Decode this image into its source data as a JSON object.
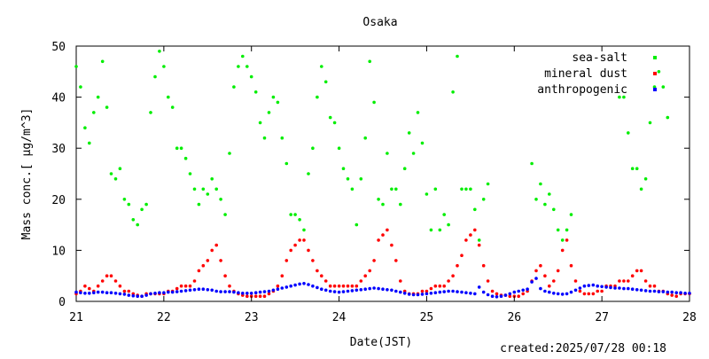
{
  "chart_data": {
    "type": "scatter",
    "title": "Osaka",
    "xlabel": "Date(JST)",
    "ylabel": "Mass conc.[ μg/m^3]",
    "xlim": [
      21,
      28
    ],
    "ylim": [
      0,
      50
    ],
    "x_ticks": [
      21,
      22,
      23,
      24,
      25,
      26,
      27,
      28
    ],
    "y_ticks": [
      0,
      10,
      20,
      30,
      40,
      50
    ],
    "x_tick_labels": [
      "21",
      "22",
      "23",
      "24",
      "25",
      "26",
      "27",
      "28"
    ],
    "y_tick_labels": [
      "0",
      "10",
      "20",
      "30",
      "40",
      "50"
    ],
    "grid": false,
    "legend_position": "top-right",
    "series": [
      {
        "name": "sea-salt",
        "color": "#00ee00",
        "x": [
          21.0,
          21.05,
          21.1,
          21.15,
          21.2,
          21.25,
          21.3,
          21.35,
          21.4,
          21.45,
          21.5,
          21.55,
          21.6,
          21.65,
          21.7,
          21.75,
          21.8,
          21.85,
          21.9,
          21.95,
          22.0,
          22.05,
          22.1,
          22.15,
          22.2,
          22.25,
          22.3,
          22.35,
          22.4,
          22.45,
          22.5,
          22.55,
          22.6,
          22.65,
          22.7,
          22.75,
          22.8,
          22.85,
          22.9,
          22.95,
          23.0,
          23.05,
          23.1,
          23.15,
          23.2,
          23.25,
          23.3,
          23.35,
          23.4,
          23.45,
          23.5,
          23.55,
          23.6,
          23.65,
          23.7,
          23.75,
          23.8,
          23.85,
          23.9,
          23.95,
          24.0,
          24.05,
          24.1,
          24.15,
          24.2,
          24.25,
          24.3,
          24.35,
          24.4,
          24.45,
          24.5,
          24.55,
          24.6,
          24.65,
          24.7,
          24.75,
          24.8,
          24.85,
          24.9,
          24.95,
          25.0,
          25.05,
          25.1,
          25.15,
          25.2,
          25.25,
          25.3,
          25.35,
          25.4,
          25.45,
          25.5,
          25.55,
          25.6,
          25.65,
          25.7,
          26.2,
          26.25,
          26.3,
          26.35,
          26.4,
          26.45,
          26.5,
          26.55,
          26.6,
          26.65,
          27.2,
          27.25,
          27.3,
          27.35,
          27.4,
          27.45,
          27.5,
          27.55,
          27.6,
          27.65,
          27.7,
          27.75
        ],
        "values": [
          46,
          42,
          34,
          31,
          37,
          40,
          47,
          38,
          25,
          24,
          26,
          20,
          19,
          16,
          15,
          18,
          19,
          37,
          44,
          49,
          46,
          40,
          38,
          30,
          30,
          28,
          25,
          22,
          19,
          22,
          21,
          24,
          22,
          20,
          17,
          29,
          42,
          46,
          48,
          46,
          44,
          41,
          35,
          32,
          37,
          40,
          39,
          32,
          27,
          17,
          17,
          16,
          14,
          25,
          30,
          40,
          46,
          43,
          36,
          35,
          30,
          26,
          24,
          22,
          15,
          24,
          32,
          47,
          39,
          20,
          19,
          29,
          22,
          22,
          19,
          26,
          33,
          29,
          37,
          31,
          21,
          14,
          22,
          14,
          17,
          15,
          41,
          48,
          22,
          22,
          22,
          18,
          12,
          20,
          23,
          27,
          20,
          23,
          19,
          21,
          18,
          14,
          12,
          14,
          17,
          40,
          40,
          33,
          26,
          26,
          22,
          24,
          35,
          42,
          45,
          42,
          36
        ]
      },
      {
        "name": "mineral dust",
        "color": "#ff0000",
        "x": [
          21.0,
          21.05,
          21.1,
          21.15,
          21.2,
          21.25,
          21.3,
          21.35,
          21.4,
          21.45,
          21.5,
          21.55,
          21.6,
          21.65,
          21.7,
          21.75,
          21.8,
          21.85,
          21.9,
          21.95,
          22.0,
          22.05,
          22.1,
          22.15,
          22.2,
          22.25,
          22.3,
          22.35,
          22.4,
          22.45,
          22.5,
          22.55,
          22.6,
          22.65,
          22.7,
          22.75,
          22.8,
          22.85,
          22.9,
          22.95,
          23.0,
          23.05,
          23.1,
          23.15,
          23.2,
          23.25,
          23.3,
          23.35,
          23.4,
          23.45,
          23.5,
          23.55,
          23.6,
          23.65,
          23.7,
          23.75,
          23.8,
          23.85,
          23.9,
          23.95,
          24.0,
          24.05,
          24.1,
          24.15,
          24.2,
          24.25,
          24.3,
          24.35,
          24.4,
          24.45,
          24.5,
          24.55,
          24.6,
          24.65,
          24.7,
          24.75,
          24.8,
          24.85,
          24.9,
          24.95,
          25.0,
          25.05,
          25.1,
          25.15,
          25.2,
          25.25,
          25.3,
          25.35,
          25.4,
          25.45,
          25.5,
          25.55,
          25.6,
          25.65,
          25.7,
          25.75,
          25.8,
          25.85,
          25.9,
          25.95,
          26.0,
          26.05,
          26.1,
          26.15,
          26.2,
          26.25,
          26.3,
          26.35,
          26.4,
          26.45,
          26.5,
          26.55,
          26.6,
          26.65,
          26.7,
          26.75,
          26.8,
          26.85,
          26.9,
          26.95,
          27.0,
          27.05,
          27.1,
          27.15,
          27.2,
          27.25,
          27.3,
          27.35,
          27.4,
          27.45,
          27.5,
          27.55,
          27.6,
          27.65,
          27.7,
          27.75,
          27.8,
          27.85,
          27.9,
          27.95,
          28.0
        ],
        "values": [
          1.5,
          2,
          3,
          2.5,
          2,
          3,
          4,
          5,
          5,
          4,
          3,
          2,
          2,
          1.5,
          1.2,
          1,
          1.5,
          1.5,
          1.5,
          1.5,
          1.5,
          2,
          2,
          2.5,
          3,
          3,
          3,
          4,
          6,
          7,
          8,
          10,
          11,
          8,
          5,
          3,
          2,
          1.5,
          1.2,
          1,
          1,
          1,
          1,
          1,
          1.5,
          2,
          3,
          5,
          8,
          10,
          11,
          12,
          12,
          10,
          8,
          6,
          5,
          4,
          3,
          3,
          3,
          3,
          3,
          3,
          3,
          4,
          5,
          6,
          8,
          12,
          13,
          14,
          11,
          8,
          4,
          2,
          1.5,
          1.5,
          1.5,
          2,
          2,
          2.5,
          3,
          3,
          3,
          4,
          5,
          7,
          9,
          12,
          13,
          14,
          11,
          7,
          4,
          2,
          1.5,
          1.2,
          1.2,
          1,
          1,
          1,
          1.5,
          2,
          4,
          6,
          7,
          5,
          3,
          4,
          6,
          10,
          12,
          7,
          4,
          2,
          1.5,
          1.5,
          1.5,
          2,
          2,
          3,
          3,
          3,
          4,
          4,
          4,
          5,
          6,
          6,
          4,
          3,
          3,
          2,
          2,
          1.5,
          1.2,
          1,
          1.5,
          1.5,
          1.5
        ]
      },
      {
        "name": "anthropogenic",
        "color": "#0000ff",
        "x": [
          21.0,
          21.05,
          21.1,
          21.15,
          21.2,
          21.25,
          21.3,
          21.35,
          21.4,
          21.45,
          21.5,
          21.55,
          21.6,
          21.65,
          21.7,
          21.75,
          21.8,
          21.85,
          21.9,
          21.95,
          22.0,
          22.05,
          22.1,
          22.15,
          22.2,
          22.25,
          22.3,
          22.35,
          22.4,
          22.45,
          22.5,
          22.55,
          22.6,
          22.65,
          22.7,
          22.75,
          22.8,
          22.85,
          22.9,
          22.95,
          23.0,
          23.05,
          23.1,
          23.15,
          23.2,
          23.25,
          23.3,
          23.35,
          23.4,
          23.45,
          23.5,
          23.55,
          23.6,
          23.65,
          23.7,
          23.75,
          23.8,
          23.85,
          23.9,
          23.95,
          24.0,
          24.05,
          24.1,
          24.15,
          24.2,
          24.25,
          24.3,
          24.35,
          24.4,
          24.45,
          24.5,
          24.55,
          24.6,
          24.65,
          24.7,
          24.75,
          24.8,
          24.85,
          24.9,
          24.95,
          25.0,
          25.05,
          25.1,
          25.15,
          25.2,
          25.25,
          25.3,
          25.35,
          25.4,
          25.45,
          25.5,
          25.55,
          25.6,
          25.65,
          25.7,
          25.75,
          25.8,
          25.85,
          25.9,
          25.95,
          26.0,
          26.05,
          26.1,
          26.15,
          26.2,
          26.25,
          26.3,
          26.35,
          26.4,
          26.45,
          26.5,
          26.55,
          26.6,
          26.65,
          26.7,
          26.75,
          26.8,
          26.85,
          26.9,
          26.95,
          27.0,
          27.05,
          27.1,
          27.15,
          27.2,
          27.25,
          27.3,
          27.35,
          27.4,
          27.45,
          27.5,
          27.55,
          27.6,
          27.65,
          27.7,
          27.75,
          27.8,
          27.85,
          27.9,
          27.95,
          28.0
        ],
        "values": [
          1.8,
          1.7,
          1.6,
          1.6,
          1.7,
          1.8,
          1.8,
          1.7,
          1.7,
          1.6,
          1.5,
          1.4,
          1.2,
          1.1,
          1.0,
          1.0,
          1.2,
          1.5,
          1.6,
          1.7,
          1.7,
          1.8,
          1.8,
          1.9,
          2.0,
          2.1,
          2.2,
          2.3,
          2.4,
          2.4,
          2.3,
          2.2,
          2.0,
          1.9,
          1.9,
          1.9,
          1.8,
          1.7,
          1.6,
          1.6,
          1.6,
          1.7,
          1.8,
          1.9,
          2.0,
          2.2,
          2.4,
          2.6,
          2.8,
          3.0,
          3.2,
          3.4,
          3.5,
          3.3,
          3.0,
          2.7,
          2.4,
          2.2,
          2.0,
          1.9,
          1.8,
          1.9,
          2.0,
          2.1,
          2.2,
          2.3,
          2.4,
          2.5,
          2.6,
          2.5,
          2.4,
          2.3,
          2.2,
          2.0,
          1.8,
          1.6,
          1.4,
          1.3,
          1.3,
          1.4,
          1.5,
          1.6,
          1.7,
          1.8,
          1.9,
          2.0,
          2.0,
          1.9,
          1.8,
          1.7,
          1.6,
          1.5,
          2.8,
          1.8,
          1.3,
          1.0,
          0.9,
          1.0,
          1.2,
          1.5,
          1.8,
          2.0,
          2.2,
          2.4,
          3.8,
          4.5,
          2.5,
          2.0,
          1.8,
          1.6,
          1.5,
          1.4,
          1.5,
          1.8,
          2.2,
          2.6,
          3.0,
          3.1,
          3.2,
          3.0,
          2.9,
          2.8,
          2.7,
          2.6,
          2.6,
          2.5,
          2.5,
          2.4,
          2.3,
          2.2,
          2.1,
          2.0,
          2.0,
          1.9,
          1.9,
          1.8,
          1.8,
          1.7,
          1.7,
          1.6,
          1.6
        ]
      }
    ],
    "footer": "created:2025/07/28 00:18"
  }
}
